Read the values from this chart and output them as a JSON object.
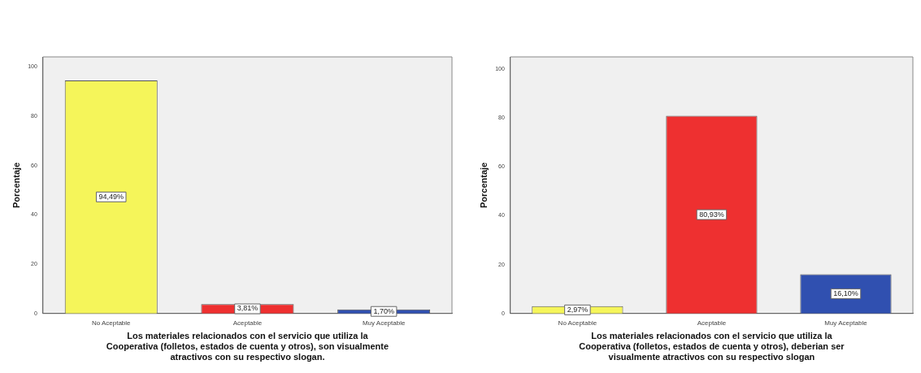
{
  "chart_data": [
    {
      "type": "bar",
      "categories": [
        "No Aceptable",
        "Aceptable",
        "Muy Aceptable"
      ],
      "ylabel": "Porcentaje",
      "xlabel": "Los materiales relacionados con el servicio que utiliza la\nCooperativa (folletos, estados de cuenta y otros), son visualmente\natractivos con su respectivo slogan.",
      "values": [
        94.49,
        3.81,
        1.7
      ],
      "value_labels": [
        "94,49%",
        "3,81%",
        "1,70%"
      ],
      "colors": [
        "#f5f55a",
        "#ee3030",
        "#3050b0"
      ],
      "ylim": [
        0,
        104
      ],
      "yticks": [
        0,
        20,
        40,
        60,
        80,
        100
      ],
      "grid": false,
      "legend": false
    },
    {
      "type": "bar",
      "categories": [
        "No Aceptable",
        "Aceptable",
        "Muy Aceptable"
      ],
      "ylabel": "Porcentaje",
      "xlabel": "Los materiales relacionados con el servicio que utiliza la\nCooperativa (folletos, estados de cuenta y otros), deberian ser\nvisualmente atractivos con su respectivo slogan",
      "values": [
        2.97,
        80.93,
        16.1
      ],
      "value_labels": [
        "2,97%",
        "80,93%",
        "16,10%"
      ],
      "colors": [
        "#f5f55a",
        "#ee3030",
        "#3050b0"
      ],
      "ylim": [
        0,
        105
      ],
      "yticks": [
        0,
        20,
        40,
        60,
        80,
        100
      ],
      "grid": false,
      "legend": false
    }
  ]
}
